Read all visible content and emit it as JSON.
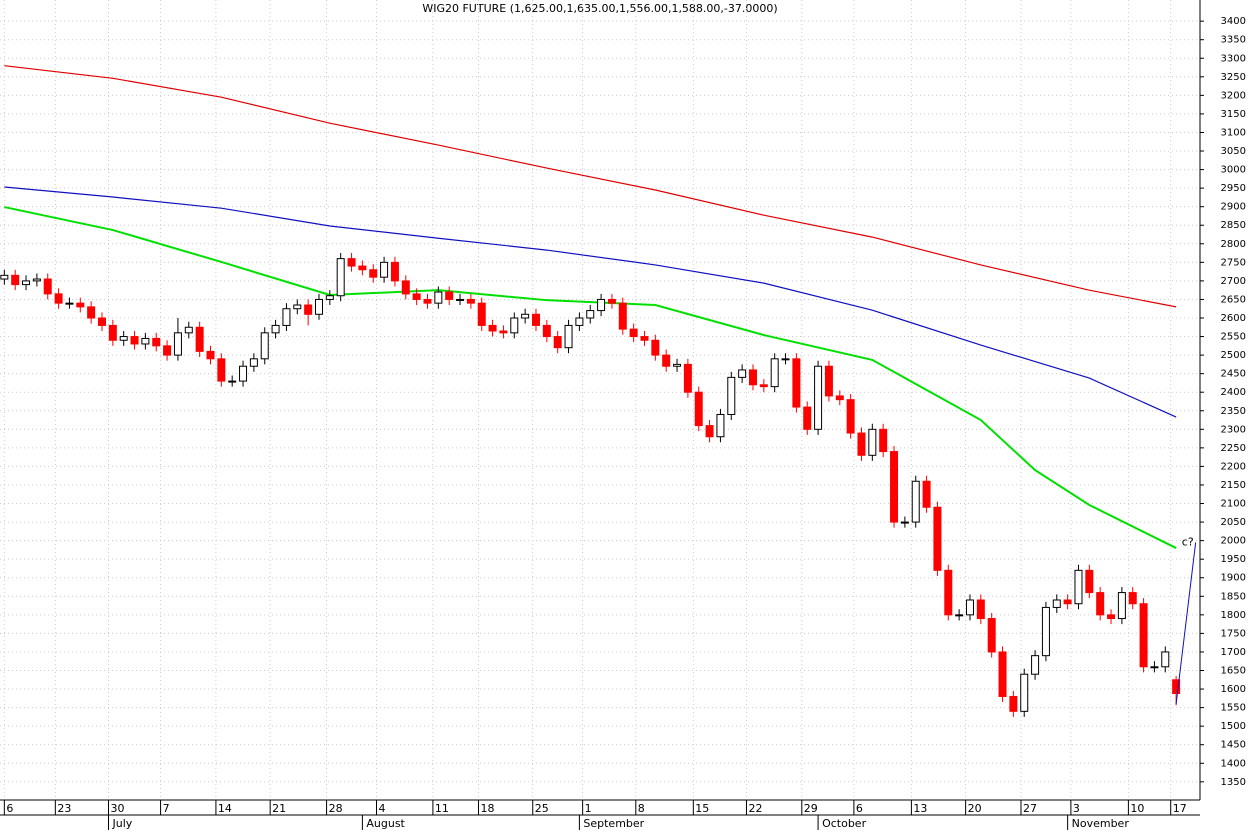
{
  "chart_data": {
    "type": "candlestick",
    "title": "WIG20 FUTURE (1,625.00,1,635.00,1,556.00,1,588.00,-37.0000)",
    "ylim": [
      1301,
      3457
    ],
    "yticks": [
      1350,
      1400,
      1450,
      1500,
      1550,
      1600,
      1650,
      1700,
      1750,
      1800,
      1850,
      1900,
      1950,
      2000,
      2050,
      2100,
      2150,
      2200,
      2250,
      2300,
      2350,
      2400,
      2450,
      2500,
      2550,
      2600,
      2650,
      2700,
      2750,
      2800,
      2850,
      2900,
      2950,
      3000,
      3050,
      3100,
      3150,
      3200,
      3250,
      3300,
      3350,
      3400
    ],
    "xlim": [
      -0.4,
      110.2
    ],
    "xticks": [
      {
        "value": 0,
        "label": "6"
      },
      {
        "value": 4.7,
        "label": "23"
      },
      {
        "value": 9.6,
        "label": "30"
      },
      {
        "value": 14.4,
        "label": "7"
      },
      {
        "value": 19.5,
        "label": "14"
      },
      {
        "value": 24.5,
        "label": "21"
      },
      {
        "value": 29.7,
        "label": "28"
      },
      {
        "value": 34.3,
        "label": "4"
      },
      {
        "value": 39.5,
        "label": "11"
      },
      {
        "value": 43.7,
        "label": "18"
      },
      {
        "value": 48.7,
        "label": "25"
      },
      {
        "value": 53.3,
        "label": "1"
      },
      {
        "value": 58.2,
        "label": "8"
      },
      {
        "value": 63.5,
        "label": "15"
      },
      {
        "value": 68.4,
        "label": "22"
      },
      {
        "value": 73.5,
        "label": "29"
      },
      {
        "value": 78.3,
        "label": "6"
      },
      {
        "value": 83.6,
        "label": "13"
      },
      {
        "value": 88.6,
        "label": "20"
      },
      {
        "value": 93.7,
        "label": "27"
      },
      {
        "value": 98.3,
        "label": "3"
      },
      {
        "value": 103.6,
        "label": "10"
      },
      {
        "value": 107.5,
        "label": "17"
      }
    ],
    "month_ticks": [
      {
        "value": 9.6,
        "label": "July"
      },
      {
        "value": 33,
        "label": "August"
      },
      {
        "value": 53,
        "label": "September"
      },
      {
        "value": 75,
        "label": "October"
      },
      {
        "value": 98,
        "label": "November"
      }
    ],
    "grid": true,
    "up_color": "#ffffff",
    "down_color": "#ff0000",
    "candles": [
      [
        2705,
        2730,
        2690,
        2715
      ],
      [
        2715,
        2730,
        2675,
        2690
      ],
      [
        2690,
        2715,
        2675,
        2700
      ],
      [
        2700,
        2720,
        2685,
        2705
      ],
      [
        2705,
        2720,
        2650,
        2665
      ],
      [
        2665,
        2680,
        2625,
        2640
      ],
      [
        2640,
        2655,
        2625,
        2640
      ],
      [
        2640,
        2655,
        2615,
        2630
      ],
      [
        2630,
        2645,
        2585,
        2600
      ],
      [
        2600,
        2615,
        2565,
        2580
      ],
      [
        2580,
        2595,
        2525,
        2540
      ],
      [
        2540,
        2565,
        2525,
        2550
      ],
      [
        2550,
        2565,
        2515,
        2530
      ],
      [
        2530,
        2560,
        2515,
        2545
      ],
      [
        2545,
        2560,
        2510,
        2525
      ],
      [
        2525,
        2540,
        2485,
        2500
      ],
      [
        2500,
        2600,
        2485,
        2560
      ],
      [
        2560,
        2590,
        2545,
        2575
      ],
      [
        2575,
        2590,
        2495,
        2510
      ],
      [
        2510,
        2525,
        2475,
        2490
      ],
      [
        2490,
        2505,
        2415,
        2430
      ],
      [
        2430,
        2445,
        2415,
        2430
      ],
      [
        2430,
        2485,
        2415,
        2470
      ],
      [
        2470,
        2505,
        2455,
        2490
      ],
      [
        2490,
        2575,
        2475,
        2560
      ],
      [
        2560,
        2595,
        2545,
        2580
      ],
      [
        2580,
        2640,
        2565,
        2625
      ],
      [
        2625,
        2650,
        2610,
        2635
      ],
      [
        2635,
        2650,
        2580,
        2610
      ],
      [
        2610,
        2665,
        2595,
        2650
      ],
      [
        2650,
        2675,
        2635,
        2660
      ],
      [
        2660,
        2775,
        2645,
        2760
      ],
      [
        2760,
        2775,
        2725,
        2740
      ],
      [
        2740,
        2755,
        2715,
        2730
      ],
      [
        2730,
        2745,
        2695,
        2710
      ],
      [
        2710,
        2765,
        2695,
        2750
      ],
      [
        2750,
        2765,
        2685,
        2700
      ],
      [
        2700,
        2715,
        2650,
        2665
      ],
      [
        2665,
        2680,
        2635,
        2650
      ],
      [
        2650,
        2665,
        2625,
        2640
      ],
      [
        2640,
        2685,
        2625,
        2670
      ],
      [
        2670,
        2685,
        2635,
        2650
      ],
      [
        2650,
        2665,
        2635,
        2650
      ],
      [
        2650,
        2665,
        2625,
        2640
      ],
      [
        2640,
        2655,
        2565,
        2580
      ],
      [
        2580,
        2595,
        2550,
        2565
      ],
      [
        2565,
        2580,
        2545,
        2560
      ],
      [
        2560,
        2615,
        2545,
        2600
      ],
      [
        2600,
        2625,
        2585,
        2610
      ],
      [
        2610,
        2625,
        2565,
        2580
      ],
      [
        2580,
        2595,
        2535,
        2550
      ],
      [
        2550,
        2565,
        2505,
        2520
      ],
      [
        2520,
        2595,
        2505,
        2580
      ],
      [
        2580,
        2615,
        2565,
        2600
      ],
      [
        2600,
        2635,
        2585,
        2620
      ],
      [
        2620,
        2665,
        2605,
        2650
      ],
      [
        2650,
        2665,
        2625,
        2640
      ],
      [
        2640,
        2655,
        2555,
        2570
      ],
      [
        2570,
        2585,
        2535,
        2550
      ],
      [
        2550,
        2565,
        2525,
        2540
      ],
      [
        2540,
        2555,
        2485,
        2500
      ],
      [
        2500,
        2515,
        2455,
        2470
      ],
      [
        2470,
        2490,
        2455,
        2475
      ],
      [
        2475,
        2490,
        2385,
        2400
      ],
      [
        2400,
        2415,
        2295,
        2310
      ],
      [
        2310,
        2325,
        2265,
        2280
      ],
      [
        2280,
        2355,
        2265,
        2340
      ],
      [
        2340,
        2455,
        2325,
        2440
      ],
      [
        2440,
        2475,
        2425,
        2460
      ],
      [
        2460,
        2475,
        2405,
        2420
      ],
      [
        2420,
        2435,
        2400,
        2415
      ],
      [
        2415,
        2505,
        2400,
        2490
      ],
      [
        2490,
        2505,
        2475,
        2490
      ],
      [
        2490,
        2505,
        2345,
        2360
      ],
      [
        2360,
        2375,
        2285,
        2300
      ],
      [
        2300,
        2485,
        2285,
        2470
      ],
      [
        2470,
        2485,
        2375,
        2390
      ],
      [
        2390,
        2405,
        2365,
        2380
      ],
      [
        2380,
        2395,
        2275,
        2290
      ],
      [
        2290,
        2305,
        2215,
        2230
      ],
      [
        2230,
        2315,
        2215,
        2300
      ],
      [
        2300,
        2315,
        2225,
        2240
      ],
      [
        2240,
        2255,
        2035,
        2050
      ],
      [
        2050,
        2065,
        2035,
        2050
      ],
      [
        2050,
        2175,
        2035,
        2160
      ],
      [
        2160,
        2175,
        2075,
        2090
      ],
      [
        2090,
        2105,
        1905,
        1920
      ],
      [
        1920,
        1935,
        1785,
        1800
      ],
      [
        1800,
        1815,
        1785,
        1800
      ],
      [
        1800,
        1855,
        1785,
        1840
      ],
      [
        1840,
        1855,
        1775,
        1790
      ],
      [
        1790,
        1805,
        1685,
        1700
      ],
      [
        1700,
        1715,
        1565,
        1580
      ],
      [
        1580,
        1595,
        1525,
        1540
      ],
      [
        1540,
        1655,
        1525,
        1640
      ],
      [
        1640,
        1705,
        1625,
        1690
      ],
      [
        1690,
        1835,
        1675,
        1820
      ],
      [
        1820,
        1855,
        1805,
        1840
      ],
      [
        1840,
        1855,
        1815,
        1830
      ],
      [
        1830,
        1935,
        1815,
        1920
      ],
      [
        1920,
        1935,
        1845,
        1860
      ],
      [
        1860,
        1875,
        1785,
        1800
      ],
      [
        1800,
        1815,
        1775,
        1790
      ],
      [
        1790,
        1875,
        1775,
        1860
      ],
      [
        1860,
        1875,
        1815,
        1830
      ],
      [
        1830,
        1845,
        1645,
        1660
      ],
      [
        1660,
        1675,
        1645,
        1660
      ],
      [
        1660,
        1715,
        1645,
        1700
      ],
      [
        1625,
        1635,
        1556,
        1588
      ]
    ],
    "series": [
      {
        "color": "#e00000",
        "x": [
          0,
          10,
          20,
          30,
          40,
          50,
          60,
          70,
          80,
          90,
          100,
          108
        ],
        "values": [
          3280,
          3246,
          3195,
          3125,
          3066,
          3004,
          2945,
          2877,
          2818,
          2743,
          2675,
          2630
        ]
      },
      {
        "color": "#1010c0",
        "x": [
          0,
          10,
          20,
          30,
          40,
          50,
          60,
          70,
          80,
          90,
          100,
          108
        ],
        "values": [
          2953,
          2926,
          2896,
          2848,
          2815,
          2783,
          2743,
          2694,
          2621,
          2527,
          2438,
          2333
        ]
      },
      {
        "color": "#00e000",
        "x": [
          0,
          10,
          20,
          30,
          40,
          50,
          60,
          70,
          80,
          90,
          95,
          100,
          108
        ],
        "values": [
          2899,
          2837,
          2751,
          2662,
          2675,
          2648,
          2635,
          2554,
          2487,
          2325,
          2190,
          2096,
          1980
        ]
      }
    ],
    "annotation": {
      "text": "c?",
      "color": "#1010c0",
      "x": [
        108,
        109.8
      ],
      "values": [
        1560,
        1995
      ]
    }
  }
}
